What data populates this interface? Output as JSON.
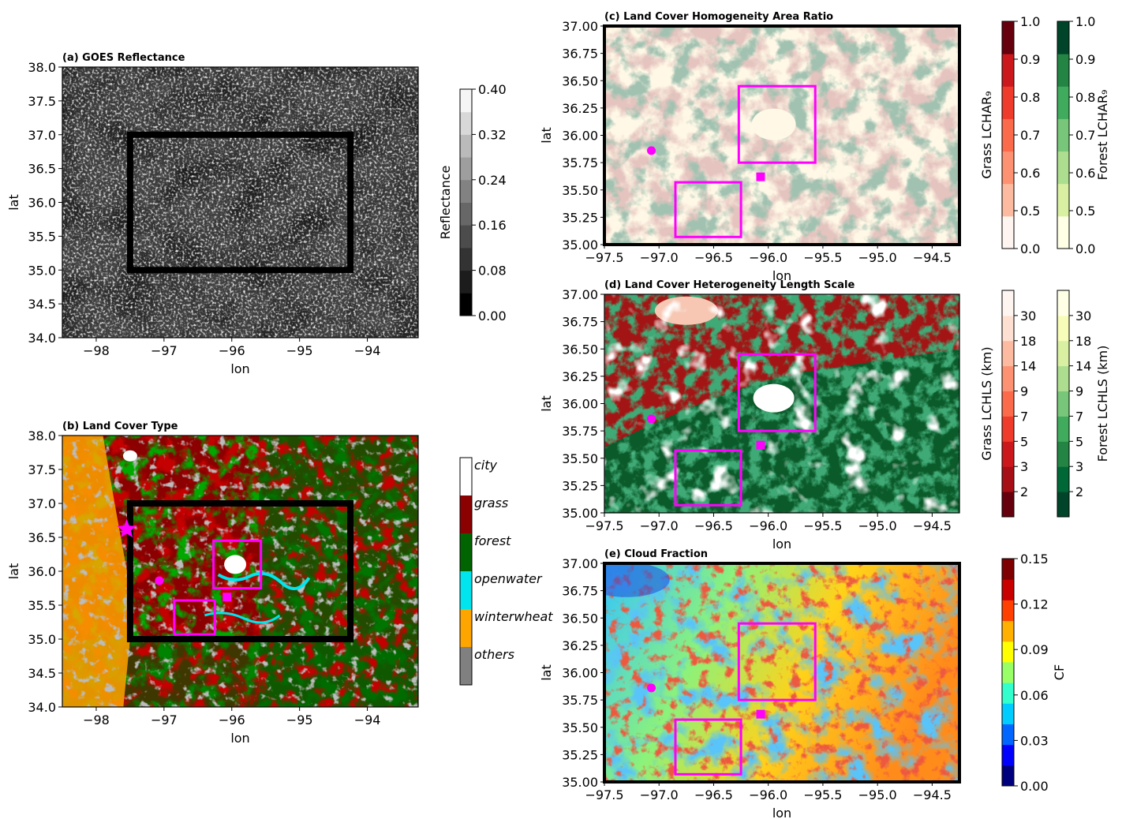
{
  "colors": {
    "city": "#ffffff",
    "grass": "#8b0000",
    "forest": "#006400",
    "openwater": "#00e5ee",
    "winterwheat": "#ffa500",
    "others": "#808080",
    "magenta": "#ff00ff",
    "frame": "#000000"
  },
  "chart_data": [
    {
      "id": "a",
      "type": "heatmap",
      "title": "(a) GOES Reflectance",
      "xlabel": "lon",
      "ylabel": "lat",
      "xlim": [
        -98.5,
        -93.25
      ],
      "ylim": [
        34.0,
        38.0
      ],
      "xticks": [
        -98,
        -97,
        -96,
        -95,
        -94
      ],
      "yticks": [
        34.0,
        34.5,
        35.0,
        35.5,
        36.0,
        36.5,
        37.0,
        37.5,
        38.0
      ],
      "study_box": {
        "lon": [
          -97.5,
          -94.25
        ],
        "lat": [
          35.0,
          37.0
        ]
      },
      "colorbar": {
        "label": "Reflectance",
        "ticks": [
          "0.00",
          "0.08",
          "0.16",
          "0.24",
          "0.32",
          "0.40"
        ],
        "colors": [
          "#000000",
          "#1c1c1c",
          "#333333",
          "#4c4c4c",
          "#676767",
          "#828282",
          "#9e9e9e",
          "#bababa",
          "#d8d8d8",
          "#f5f5f5"
        ]
      }
    },
    {
      "id": "b",
      "type": "heatmap",
      "title": "(b) Land Cover Type",
      "xlabel": "lon",
      "ylabel": "lat",
      "xlim": [
        -98.5,
        -93.25
      ],
      "ylim": [
        34.0,
        38.0
      ],
      "xticks": [
        -98,
        -97,
        -96,
        -95,
        -94
      ],
      "yticks": [
        34.0,
        34.5,
        35.0,
        35.5,
        36.0,
        36.5,
        37.0,
        37.5,
        38.0
      ],
      "study_box": {
        "lon": [
          -97.5,
          -94.25
        ],
        "lat": [
          35.0,
          37.0
        ]
      },
      "subboxes": [
        {
          "lon": [
            -96.85,
            -96.25
          ],
          "lat": [
            35.07,
            35.57
          ]
        },
        {
          "lon": [
            -96.27,
            -95.57
          ],
          "lat": [
            35.75,
            36.45
          ]
        }
      ],
      "markers": {
        "star": {
          "lon": -97.55,
          "lat": 36.62
        },
        "circle": {
          "lon": -97.07,
          "lat": 35.86
        },
        "square": {
          "lon": -96.07,
          "lat": 35.62
        }
      },
      "legend": [
        "city",
        "grass",
        "forest",
        "openwater",
        "winterwheat",
        "others"
      ]
    },
    {
      "id": "c",
      "type": "heatmap",
      "title": "(c) Land Cover Homogeneity Area Ratio",
      "xlabel": "lon",
      "ylabel": "lat",
      "xlim": [
        -97.5,
        -94.25
      ],
      "ylim": [
        35.0,
        37.0
      ],
      "xticks": [
        -97.5,
        -97.0,
        -96.5,
        -96.0,
        -95.5,
        -95.0,
        -94.5
      ],
      "yticks": [
        35.0,
        35.25,
        35.5,
        35.75,
        36.0,
        36.25,
        36.5,
        36.75,
        37.0
      ],
      "subboxes": [
        {
          "lon": [
            -96.85,
            -96.25
          ],
          "lat": [
            35.07,
            35.57
          ]
        },
        {
          "lon": [
            -96.27,
            -95.57
          ],
          "lat": [
            35.75,
            36.45
          ]
        }
      ],
      "markers": {
        "circle": {
          "lon": -97.07,
          "lat": 35.86
        },
        "square": {
          "lon": -96.07,
          "lat": 35.62
        }
      },
      "colorbars": [
        {
          "label": "Grass LCHAR₉",
          "ticks": [
            "0.0",
            "0.5",
            "0.6",
            "0.7",
            "0.8",
            "0.9",
            "1.0"
          ],
          "colors": [
            "#fff5f0",
            "#fcbba1",
            "#fc9272",
            "#fb6a4a",
            "#ef3b2c",
            "#cb181d",
            "#67000d"
          ]
        },
        {
          "label": "Forest LCHAR₉",
          "ticks": [
            "0.0",
            "0.5",
            "0.6",
            "0.7",
            "0.8",
            "0.9",
            "1.0"
          ],
          "colors": [
            "#ffffe5",
            "#d9f0a3",
            "#addd8e",
            "#78c679",
            "#41ab5d",
            "#238443",
            "#004529"
          ]
        }
      ]
    },
    {
      "id": "d",
      "type": "heatmap",
      "title": "(d) Land Cover Heterogeneity Length Scale",
      "xlabel": "lon",
      "ylabel": "lat",
      "xlim": [
        -97.5,
        -94.25
      ],
      "ylim": [
        35.0,
        37.0
      ],
      "xticks": [
        -97.5,
        -97.0,
        -96.5,
        -96.0,
        -95.5,
        -95.0,
        -94.5
      ],
      "yticks": [
        35.0,
        35.25,
        35.5,
        35.75,
        36.0,
        36.25,
        36.5,
        36.75,
        37.0
      ],
      "subboxes": [
        {
          "lon": [
            -96.85,
            -96.25
          ],
          "lat": [
            35.07,
            35.57
          ]
        },
        {
          "lon": [
            -96.27,
            -95.57
          ],
          "lat": [
            35.75,
            36.45
          ]
        }
      ],
      "markers": {
        "circle": {
          "lon": -97.07,
          "lat": 35.86
        },
        "square": {
          "lon": -96.07,
          "lat": 35.62
        }
      },
      "colorbars": [
        {
          "label": "Grass LCHLS (km)",
          "ticks": [
            "2",
            "3",
            "5",
            "7",
            "9",
            "14",
            "18",
            "30"
          ],
          "colors": [
            "#67000d",
            "#a50f15",
            "#cb181d",
            "#ef3b2c",
            "#fb6a4a",
            "#fc9272",
            "#fcbba1",
            "#fee0d2",
            "#fff5f0"
          ]
        },
        {
          "label": "Forest LCHLS (km)",
          "ticks": [
            "2",
            "3",
            "5",
            "7",
            "9",
            "14",
            "18",
            "30"
          ],
          "colors": [
            "#004529",
            "#006837",
            "#238443",
            "#41ab5d",
            "#78c679",
            "#addd8e",
            "#d9f0a3",
            "#f7fcb9",
            "#ffffe5"
          ]
        }
      ]
    },
    {
      "id": "e",
      "type": "heatmap",
      "title": "(e) Cloud Fraction",
      "xlabel": "lon",
      "ylabel": "lat",
      "xlim": [
        -97.5,
        -94.25
      ],
      "ylim": [
        35.0,
        37.0
      ],
      "xticks": [
        -97.5,
        -97.0,
        -96.5,
        -96.0,
        -95.5,
        -95.0,
        -94.5
      ],
      "yticks": [
        35.0,
        35.25,
        35.5,
        35.75,
        36.0,
        36.25,
        36.5,
        36.75,
        37.0
      ],
      "subboxes": [
        {
          "lon": [
            -96.85,
            -96.25
          ],
          "lat": [
            35.07,
            35.57
          ]
        },
        {
          "lon": [
            -96.27,
            -95.57
          ],
          "lat": [
            35.75,
            36.45
          ]
        }
      ],
      "markers": {
        "circle": {
          "lon": -97.07,
          "lat": 35.86
        },
        "square": {
          "lon": -96.07,
          "lat": 35.62
        }
      },
      "colorbar": {
        "label": "CF",
        "ticks": [
          "0.00",
          "0.03",
          "0.06",
          "0.09",
          "0.12",
          "0.15"
        ],
        "colors": [
          "#00007f",
          "#0000ff",
          "#0066ff",
          "#00ccff",
          "#33ffcc",
          "#99ff66",
          "#ffff00",
          "#ffb000",
          "#ff4000",
          "#c80000",
          "#7f0000"
        ]
      }
    }
  ]
}
